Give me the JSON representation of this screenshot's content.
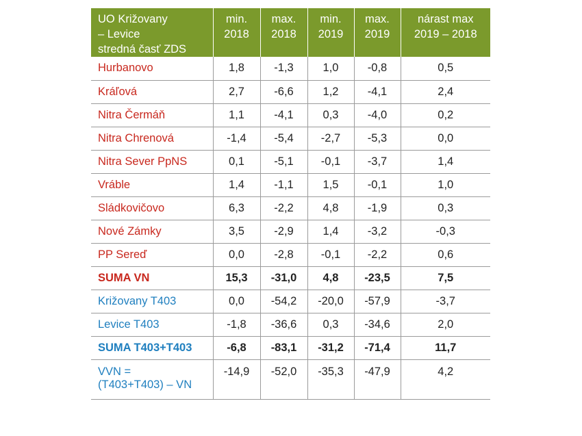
{
  "header": {
    "col0": [
      "UO Križovany",
      "– Levice",
      "stredná časť ZDS"
    ],
    "col1": [
      "min.",
      "2018"
    ],
    "col2": [
      "max.",
      "2018"
    ],
    "col3": [
      "min.",
      "2019"
    ],
    "col4": [
      "max.",
      "2019"
    ],
    "col5": [
      "nárast max",
      "2019 – 2018"
    ]
  },
  "colors": {
    "header_bg": "#7b9a2c",
    "red": "#c8281e",
    "blue": "#1f7fbf"
  },
  "rows": [
    {
      "name": "Hurbanovo",
      "v": [
        "1,8",
        "-1,3",
        "1,0",
        "-0,8",
        "0,5"
      ]
    },
    {
      "name": "Kráľová",
      "v": [
        "2,7",
        "-6,6",
        "1,2",
        "-4,1",
        "2,4"
      ]
    },
    {
      "name": "Nitra Čermáň",
      "v": [
        "1,1",
        "-4,1",
        "0,3",
        "-4,0",
        "0,2"
      ]
    },
    {
      "name": "Nitra Chrenová",
      "v": [
        "-1,4",
        "-5,4",
        "-2,7",
        "-5,3",
        "0,0"
      ]
    },
    {
      "name": "Nitra Sever PpNS",
      "v": [
        "0,1",
        "-5,1",
        "-0,1",
        "-3,7",
        "1,4"
      ]
    },
    {
      "name": "Vráble",
      "v": [
        "1,4",
        "-1,1",
        "1,5",
        "-0,1",
        "1,0"
      ]
    },
    {
      "name": "Sládkovičovo",
      "v": [
        "6,3",
        "-2,2",
        "4,8",
        "-1,9",
        "0,3"
      ]
    },
    {
      "name": "Nové Zámky",
      "v": [
        "3,5",
        "-2,9",
        "1,4",
        "-3,2",
        "-0,3"
      ]
    },
    {
      "name": "PP Sereď",
      "v": [
        "0,0",
        "-2,8",
        "-0,1",
        "-2,2",
        "0,6"
      ]
    },
    {
      "name": "SUMA VN",
      "v": [
        "15,3",
        "-31,0",
        "4,8",
        "-23,5",
        "7,5"
      ]
    },
    {
      "name": "Križovany T403",
      "v": [
        "0,0",
        "-54,2",
        "-20,0",
        "-57,9",
        "-3,7"
      ]
    },
    {
      "name": "Levice T403",
      "v": [
        "-1,8",
        "-36,6",
        "0,3",
        "-34,6",
        "2,0"
      ]
    },
    {
      "name": "SUMA T403+T403",
      "v": [
        "-6,8",
        "-83,1",
        "-31,2",
        "-71,4",
        "11,7"
      ]
    },
    {
      "name": [
        "VVN =",
        "(T403+T403) – VN"
      ],
      "v": [
        "-14,9",
        "-52,0",
        "-35,3",
        "-47,9",
        "4,2"
      ]
    }
  ]
}
